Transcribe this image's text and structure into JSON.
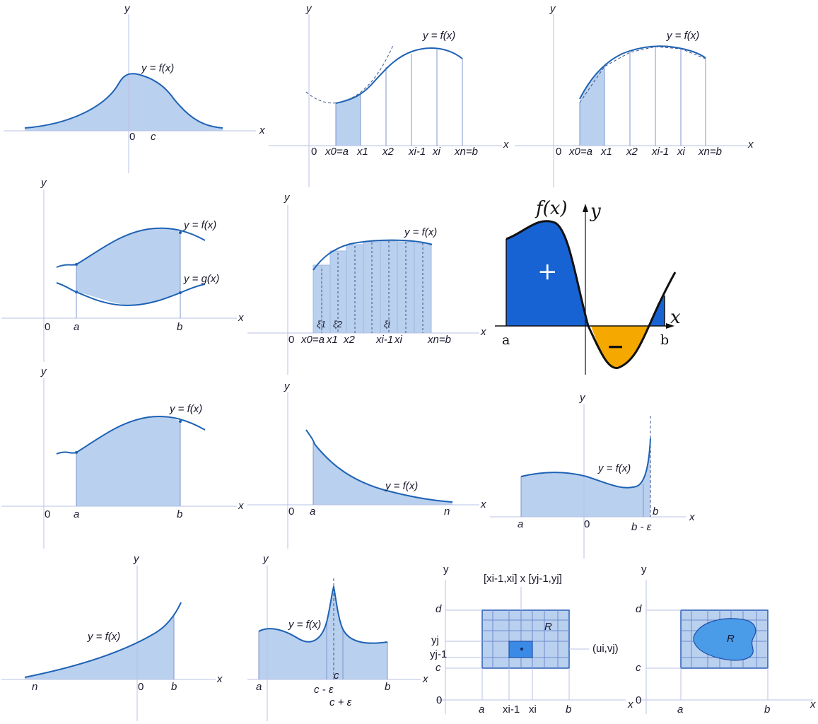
{
  "panels": {
    "p1": {
      "y": "y",
      "x": "x",
      "curve": "y = f(x)",
      "zero": "0",
      "c": "c"
    },
    "p2": {
      "y": "y",
      "x": "x",
      "curve": "y = f(x)",
      "zero": "0",
      "ticks": [
        "x0=a",
        "x1",
        "x2",
        "xi-1",
        "xi",
        "xn=b"
      ]
    },
    "p3": {
      "y": "y",
      "x": "x",
      "curve": "y = f(x)",
      "zero": "0",
      "ticks": [
        "x0=a",
        "x1",
        "x2",
        "xi-1",
        "xi",
        "xn=b"
      ]
    },
    "p4": {
      "y": "y",
      "x": "x",
      "f": "y = f(x)",
      "g": "y = g(x)",
      "zero": "0",
      "a": "a",
      "b": "b"
    },
    "p5": {
      "y": "y",
      "x": "x",
      "curve": "y = f(x)",
      "zero": "0",
      "xi1": "ξ1",
      "xi2": "ξ2",
      "xii": "ξi",
      "ticks": [
        "x0=a",
        "x1",
        "x2",
        "xi-1",
        "xi",
        "xn=b"
      ]
    },
    "p6": {
      "fx": "f(x)",
      "y": "y",
      "x": "x",
      "plus": "+",
      "minus": "−",
      "a": "a",
      "b": "b",
      "colors": {
        "positive": "#1763d4",
        "negative": "#f5a800"
      }
    },
    "p7": {
      "y": "y",
      "x": "x",
      "curve": "y = f(x)",
      "zero": "0",
      "a": "a",
      "b": "b"
    },
    "p8": {
      "y": "y",
      "x": "x",
      "curve": "y = f(x)",
      "zero": "0",
      "a": "a",
      "n": "n"
    },
    "p9": {
      "y": "y",
      "x": "x",
      "curve": "y = f(x)",
      "zero": "0",
      "a": "a",
      "b": "b",
      "beps": "b - ε"
    },
    "p10": {
      "y": "y",
      "x": "x",
      "curve": "y = f(x)",
      "zero": "0",
      "n": "n",
      "b": "b"
    },
    "p11": {
      "y": "y",
      "x": "x",
      "curve": "y = f(x)",
      "a": "a",
      "b": "b",
      "c": "c",
      "cminus": "c - ε",
      "cplus": "c + ε"
    },
    "p12": {
      "y": "y",
      "x": "x",
      "zero": "0",
      "rect": "[xi-1,xi] x [yj-1,yj]",
      "R": "R",
      "d": "d",
      "c": "c",
      "yj": "yj",
      "yj1": "yj-1",
      "uv": "(ui,vj)",
      "a": "a",
      "b": "b",
      "xi1": "xi-1",
      "xi": "xi"
    },
    "p13": {
      "y": "y",
      "x": "x",
      "zero": "0",
      "R": "R",
      "d": "d",
      "c": "c",
      "a": "a",
      "b": "b"
    }
  }
}
